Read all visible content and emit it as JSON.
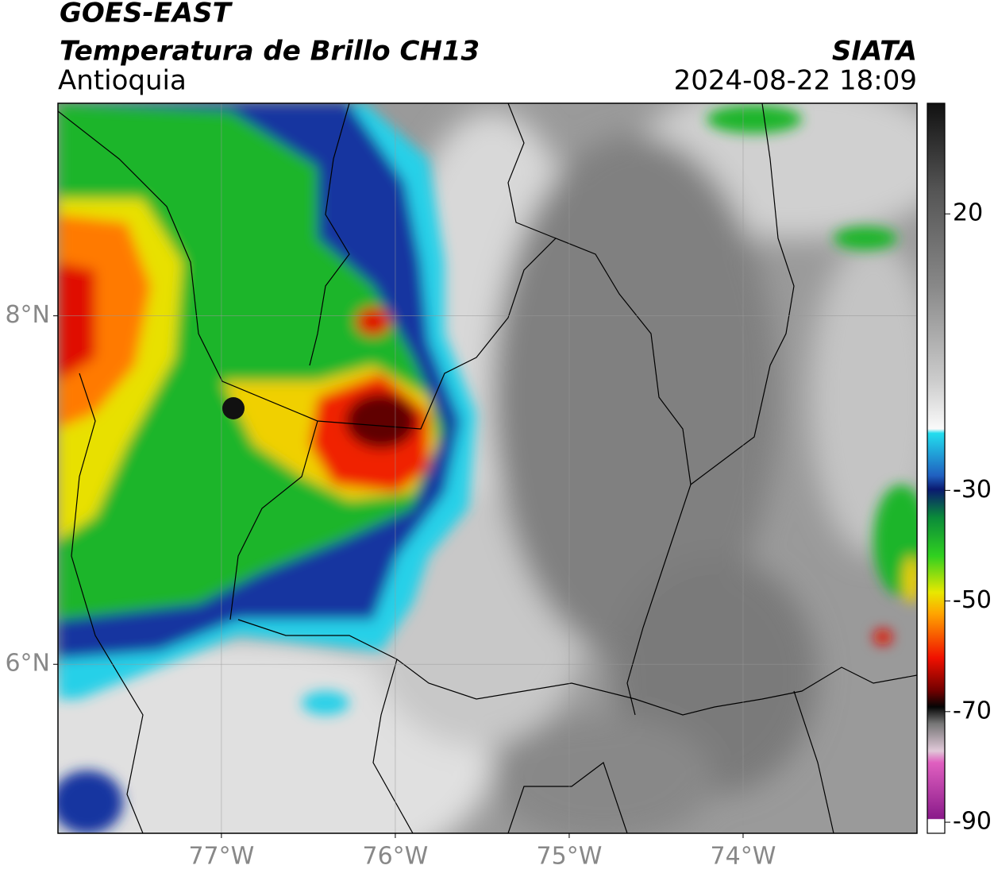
{
  "title": "GOES-EAST",
  "subtitle": "Temperatura de Brillo CH13",
  "region": "Antioquia",
  "source": "SIATA",
  "datetime": "2024-08-22 18:09",
  "map": {
    "type": "map",
    "xlim": [
      -77.94,
      -73
    ],
    "ylim": [
      5.03,
      9.22
    ],
    "xticks": [
      {
        "value": -77,
        "label": "77°W"
      },
      {
        "value": -76,
        "label": "76°W"
      },
      {
        "value": -75,
        "label": "75°W"
      },
      {
        "value": -74,
        "label": "74°W"
      }
    ],
    "yticks": [
      {
        "value": 6,
        "label": "6°N"
      },
      {
        "value": 8,
        "label": "8°N"
      }
    ],
    "grid": true
  },
  "colorbar": {
    "clim": [
      -92,
      40
    ],
    "ticks": [
      20,
      -30,
      -50,
      -70,
      -90
    ]
  }
}
